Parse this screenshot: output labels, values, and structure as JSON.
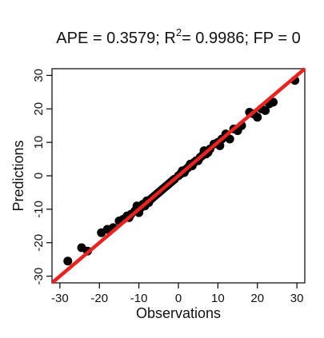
{
  "chart_data": {
    "type": "scatter",
    "title": "APE = 0.3579; R²= 0.9986; FP = 0",
    "title_parts": {
      "prefix": "APE = 0.3579; R",
      "sup": "2",
      "suffix": "= 0.9986; FP = 0"
    },
    "xlabel": "Observations",
    "ylabel": "Predictions",
    "xlim": [
      -32,
      32
    ],
    "ylim": [
      -32,
      32
    ],
    "xticks": [
      -30,
      -20,
      -10,
      0,
      10,
      20,
      30
    ],
    "yticks": [
      -30,
      -20,
      -10,
      0,
      10,
      20,
      30
    ],
    "grid": false,
    "legend": "none",
    "point_color": "#000000",
    "fit_line": {
      "x": [
        -32,
        32
      ],
      "y": [
        -32,
        32
      ],
      "color": "#e8231f"
    },
    "series": [
      {
        "x": [
          -28,
          -24.5,
          -23,
          -19.5,
          -18,
          -16.5,
          -15,
          -14,
          -13,
          -12.5,
          -12,
          -11,
          -10.5,
          -10,
          -9.5,
          -9,
          -8.5,
          -8,
          -7.5,
          -7,
          -6.5,
          -6,
          -5.5,
          -5,
          -4.5,
          -4,
          -3.5,
          -3,
          -2.5,
          -2,
          -1.5,
          -1,
          0,
          0.5,
          1,
          1.5,
          2,
          2.5,
          3,
          3.5,
          4,
          4.5,
          5,
          5.5,
          6,
          6.5,
          7,
          7.5,
          8,
          9,
          10,
          10.5,
          11,
          12,
          13,
          14,
          15,
          16,
          18,
          19,
          20,
          21,
          22,
          23,
          24,
          29.5
        ],
        "y": [
          -25.5,
          -21.5,
          -22.5,
          -17,
          -16,
          -15.5,
          -13.5,
          -13,
          -12,
          -12.5,
          -11.5,
          -10.5,
          -9,
          -11,
          -9.5,
          -8.5,
          -9,
          -7.5,
          -8,
          -7,
          -6.5,
          -6,
          -5.5,
          -5,
          -4.5,
          -4,
          -3.5,
          -3,
          -2.5,
          -2,
          -1.5,
          -1,
          0,
          0.5,
          1.5,
          1,
          2,
          2.5,
          3.5,
          3,
          4,
          4.5,
          4.5,
          5.5,
          6,
          7.5,
          6.5,
          7,
          8,
          9.5,
          10,
          9,
          11,
          12.5,
          11,
          14,
          13.5,
          15,
          19,
          18.5,
          17.5,
          20,
          19.5,
          21.5,
          22,
          28.5
        ]
      }
    ]
  }
}
